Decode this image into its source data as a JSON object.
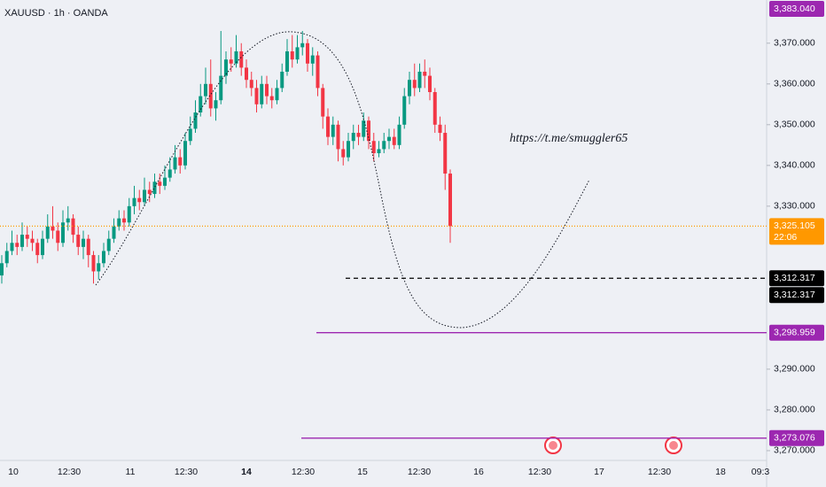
{
  "chart_data": {
    "type": "candlestick",
    "title": "XAUUSD · 1h · OANDA",
    "annotation": "https://t.me/smuggler65",
    "ylim": [
      3267.6,
      3380.6
    ],
    "yticks": [
      {
        "value": 3270,
        "label": "3,270.000"
      },
      {
        "value": 3280,
        "label": "3,280.000"
      },
      {
        "value": 3290,
        "label": "3,290.000"
      },
      {
        "value": 3330,
        "label": "3,330.000"
      },
      {
        "value": 3340,
        "label": "3,340.000"
      },
      {
        "value": 3350,
        "label": "3,350.000"
      },
      {
        "value": 3360,
        "label": "3,360.000"
      },
      {
        "value": 3370,
        "label": "3,370.000"
      }
    ],
    "time_labels": [
      "10",
      "12:30",
      "11",
      "12:30",
      "14",
      "12:30",
      "15",
      "12:30",
      "16",
      "12:30",
      "17",
      "12:30",
      "18",
      "09:3"
    ],
    "up_color": "#089981",
    "down_color": "#f23645",
    "open": [
      3313,
      3316,
      3319,
      3321,
      3320,
      3323,
      3322,
      3321,
      3318,
      3322,
      3325,
      3324,
      3321,
      3326,
      3327,
      3323,
      3320,
      3322,
      3318,
      3314,
      3316,
      3319,
      3322,
      3325,
      3327,
      3326,
      3330,
      3332,
      3331,
      3334,
      3333,
      3336,
      3335,
      3337,
      3339,
      3342,
      3340,
      3346,
      3349,
      3353,
      3357,
      3360,
      3354,
      3356,
      3362,
      3366,
      3365,
      3368,
      3364,
      3361,
      3359,
      3355,
      3360,
      3357,
      3356,
      3359,
      3363,
      3368,
      3366,
      3369,
      3370,
      3365,
      3367,
      3359,
      3352,
      3347,
      3350,
      3344,
      3342,
      3346,
      3348,
      3347,
      3351,
      3346,
      3343,
      3344,
      3346,
      3347,
      3345,
      3350,
      3357,
      3361,
      3359,
      3363,
      3362,
      3358,
      3350,
      3348,
      3338
    ],
    "high": [
      3318,
      3321,
      3324,
      3323,
      3326,
      3325,
      3324,
      3322,
      3324,
      3328,
      3330,
      3326,
      3329,
      3330,
      3328,
      3325,
      3324,
      3323,
      3319,
      3318,
      3321,
      3324,
      3327,
      3329,
      3329,
      3332,
      3335,
      3334,
      3337,
      3336,
      3338,
      3338,
      3340,
      3342,
      3345,
      3344,
      3348,
      3352,
      3356,
      3360,
      3364,
      3366,
      3358,
      3373,
      3368,
      3369,
      3372,
      3370,
      3366,
      3363,
      3361,
      3362,
      3362,
      3359,
      3361,
      3365,
      3371,
      3372,
      3372,
      3373,
      3371,
      3369,
      3368,
      3360,
      3354,
      3352,
      3351,
      3346,
      3348,
      3350,
      3350,
      3353,
      3352,
      3348,
      3346,
      3348,
      3349,
      3349,
      3352,
      3359,
      3363,
      3365,
      3365,
      3366,
      3364,
      3359,
      3352,
      3350,
      3339
    ],
    "low": [
      3311,
      3315,
      3318,
      3318,
      3319,
      3320,
      3319,
      3316,
      3317,
      3321,
      3322,
      3319,
      3320,
      3324,
      3321,
      3318,
      3317,
      3315,
      3311,
      3312,
      3315,
      3318,
      3321,
      3324,
      3324,
      3325,
      3328,
      3329,
      3330,
      3331,
      3332,
      3333,
      3334,
      3336,
      3338,
      3338,
      3339,
      3345,
      3348,
      3352,
      3355,
      3352,
      3351,
      3355,
      3360,
      3363,
      3364,
      3362,
      3359,
      3357,
      3353,
      3354,
      3355,
      3354,
      3355,
      3358,
      3362,
      3364,
      3365,
      3367,
      3363,
      3362,
      3357,
      3349,
      3345,
      3345,
      3341,
      3340,
      3341,
      3344,
      3345,
      3346,
      3344,
      3341,
      3342,
      3343,
      3344,
      3344,
      3344,
      3349,
      3355,
      3357,
      3358,
      3359,
      3356,
      3348,
      3346,
      3334,
      3321
    ],
    "close": [
      3316,
      3319,
      3321,
      3320,
      3323,
      3322,
      3321,
      3318,
      3322,
      3325,
      3324,
      3321,
      3326,
      3327,
      3323,
      3320,
      3322,
      3318,
      3314,
      3316,
      3319,
      3322,
      3325,
      3327,
      3326,
      3330,
      3332,
      3331,
      3334,
      3333,
      3336,
      3335,
      3337,
      3339,
      3342,
      3340,
      3346,
      3349,
      3353,
      3357,
      3360,
      3354,
      3356,
      3362,
      3366,
      3365,
      3368,
      3364,
      3361,
      3359,
      3355,
      3360,
      3357,
      3356,
      3359,
      3363,
      3368,
      3366,
      3369,
      3370,
      3365,
      3367,
      3359,
      3352,
      3347,
      3350,
      3344,
      3342,
      3346,
      3348,
      3347,
      3351,
      3346,
      3343,
      3344,
      3346,
      3347,
      3345,
      3350,
      3357,
      3361,
      3359,
      3363,
      3362,
      3358,
      3350,
      3348,
      3338,
      3325.105
    ],
    "price_labels": [
      {
        "value": 3383.04,
        "label": "3,383.040",
        "color": "#9c27b0"
      },
      {
        "value": 3325.105,
        "label": "3,325.105",
        "color": "#ff9800",
        "countdown": "22:06"
      },
      {
        "value": 3312.317,
        "label": "3,312.317",
        "color": "#000000"
      },
      {
        "value": 3298.959,
        "label": "3,298.959",
        "color": "#9c27b0"
      },
      {
        "value": 3273.076,
        "label": "3,273.076",
        "color": "#9c27b0"
      }
    ]
  }
}
